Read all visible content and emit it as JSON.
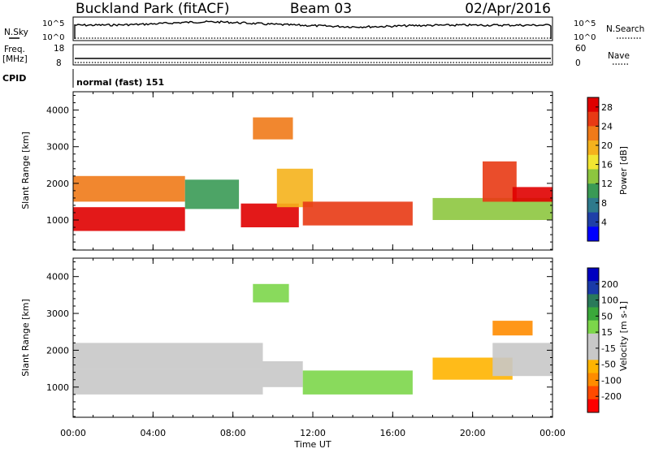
{
  "header": {
    "site": "Buckland Park (fitACF)",
    "beam": "Beam 03",
    "date": "02/Apr/2016"
  },
  "top_panels": {
    "nsky_label": "N.Sky",
    "nsearch_label": "N.Search",
    "nsky_ticks": [
      "10^5",
      "10^0"
    ],
    "nsearch_ticks": [
      "10^5",
      "10^0"
    ],
    "freq_label": "Freq.",
    "freq_unit": "[MHz]",
    "freq_ticks": [
      "18",
      "8"
    ],
    "nave_label": "Nave",
    "nave_ticks": [
      "60",
      "0"
    ],
    "cpid_label": "CPID",
    "cpid_value": "normal (fast) 151"
  },
  "colors": {
    "power_scale": [
      "#0000ff",
      "#1f3fa8",
      "#2e7a8c",
      "#3a9a55",
      "#8dc63f",
      "#f2e632",
      "#f5b21c",
      "#f07a18",
      "#e83a14",
      "#e00000"
    ],
    "velocity_scale": [
      "#ff0000",
      "#ff4a00",
      "#ff8c00",
      "#ffb400",
      "#c8c8c8",
      "#c8c8c8",
      "#7cd64a",
      "#3aa83a",
      "#2a7a5a",
      "#1a3aa8",
      "#0000c0"
    ]
  },
  "chart_data": [
    {
      "type": "heatmap",
      "ylabel": "Slant Range [km]",
      "xlabel": "",
      "x_ticks": [
        "00:00",
        "04:00",
        "08:00",
        "12:00",
        "16:00",
        "20:00",
        "00:00"
      ],
      "y_ticks": [
        "1000",
        "2000",
        "3000",
        "4000"
      ],
      "xlim": [
        0,
        24
      ],
      "ylim": [
        180,
        4500
      ],
      "colorbar_label": "Power [dB]",
      "colorbar_ticks": [
        "4",
        "8",
        "12",
        "16",
        "20",
        "24",
        "28"
      ],
      "clim": [
        0,
        30
      ],
      "regions": [
        {
          "x": [
            0.0,
            5.6
          ],
          "y": [
            700,
            1350
          ],
          "level": 29
        },
        {
          "x": [
            0.0,
            5.6
          ],
          "y": [
            1500,
            2200
          ],
          "level": 21
        },
        {
          "x": [
            5.6,
            8.3
          ],
          "y": [
            1300,
            2100
          ],
          "level": 11
        },
        {
          "x": [
            8.4,
            11.3
          ],
          "y": [
            800,
            1450
          ],
          "level": 27
        },
        {
          "x": [
            10.2,
            12.0
          ],
          "y": [
            1350,
            2400
          ],
          "level": 20
        },
        {
          "x": [
            11.5,
            17.0
          ],
          "y": [
            850,
            1500
          ],
          "level": 26
        },
        {
          "x": [
            18.0,
            24.0
          ],
          "y": [
            1000,
            1600
          ],
          "level": 12
        },
        {
          "x": [
            20.5,
            22.2
          ],
          "y": [
            1500,
            2600
          ],
          "level": 24
        },
        {
          "x": [
            22.0,
            24.0
          ],
          "y": [
            1500,
            1900
          ],
          "level": 27
        },
        {
          "x": [
            9.0,
            11.0
          ],
          "y": [
            3200,
            3800
          ],
          "level": 22
        }
      ]
    },
    {
      "type": "heatmap",
      "ylabel": "Slant Range [km]",
      "xlabel": "Time UT",
      "x_ticks": [
        "00:00",
        "04:00",
        "08:00",
        "12:00",
        "16:00",
        "20:00",
        "00:00"
      ],
      "y_ticks": [
        "1000",
        "2000",
        "3000",
        "4000"
      ],
      "xlim": [
        0,
        24
      ],
      "ylim": [
        180,
        4500
      ],
      "colorbar_label": "Velocity [m s-1]",
      "colorbar_ticks": [
        "200",
        "100",
        "50",
        "15",
        "-15",
        "-50",
        "-100",
        "-200"
      ],
      "clim": [
        -250,
        250
      ],
      "regions": [
        {
          "x": [
            0.0,
            9.5
          ],
          "y": [
            800,
            1500
          ],
          "level": 0
        },
        {
          "x": [
            0.0,
            9.5
          ],
          "y": [
            1500,
            2200
          ],
          "level": -20
        },
        {
          "x": [
            9.5,
            11.5
          ],
          "y": [
            1000,
            1700
          ],
          "level": 0
        },
        {
          "x": [
            11.5,
            17.0
          ],
          "y": [
            800,
            1450
          ],
          "level": 50
        },
        {
          "x": [
            18.0,
            22.0
          ],
          "y": [
            1200,
            1800
          ],
          "level": -80
        },
        {
          "x": [
            21.0,
            24.0
          ],
          "y": [
            1300,
            2200
          ],
          "level": 0
        },
        {
          "x": [
            9.0,
            10.8
          ],
          "y": [
            3300,
            3800
          ],
          "level": 40
        },
        {
          "x": [
            21.0,
            23.0
          ],
          "y": [
            2400,
            2800
          ],
          "level": -150
        }
      ]
    }
  ]
}
